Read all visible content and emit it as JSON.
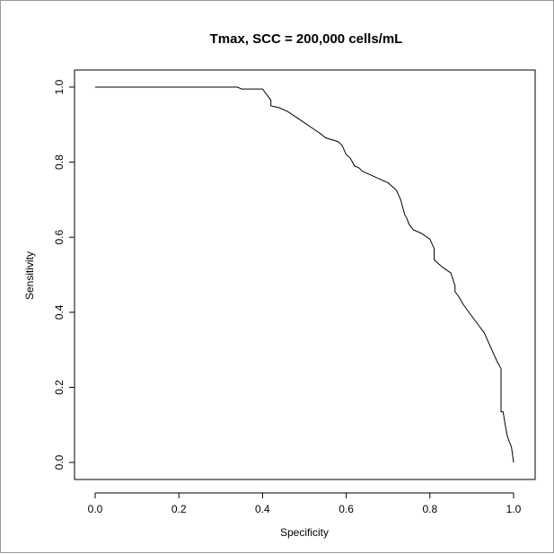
{
  "chart_data": {
    "type": "line",
    "title": "Tmax, SCC = 200,000 cells/mL",
    "xlabel": "Specificity",
    "ylabel": "Sensitivity",
    "xlim": [
      0.0,
      1.0
    ],
    "ylim": [
      0.0,
      1.0
    ],
    "x_ticks": [
      "0.0",
      "0.2",
      "0.4",
      "0.6",
      "0.8",
      "1.0"
    ],
    "y_ticks": [
      "0.0",
      "0.2",
      "0.4",
      "0.6",
      "0.8",
      "1.0"
    ],
    "grid": false,
    "series": [
      {
        "x": [
          0.0,
          0.34,
          0.35,
          0.4,
          0.41,
          0.42,
          0.42,
          0.44,
          0.46,
          0.48,
          0.5,
          0.52,
          0.54,
          0.55,
          0.58,
          0.59,
          0.6,
          0.61,
          0.62,
          0.63,
          0.64,
          0.66,
          0.68,
          0.7,
          0.71,
          0.72,
          0.73,
          0.735,
          0.74,
          0.745,
          0.75,
          0.76,
          0.78,
          0.8,
          0.81,
          0.81,
          0.82,
          0.83,
          0.85,
          0.86,
          0.86,
          0.87,
          0.88,
          0.9,
          0.92,
          0.93,
          0.94,
          0.95,
          0.96,
          0.97,
          0.97,
          0.975,
          0.98,
          0.985,
          0.99,
          0.995,
          1.0
        ],
        "y": [
          1.0,
          1.0,
          0.995,
          0.995,
          0.98,
          0.965,
          0.95,
          0.945,
          0.935,
          0.92,
          0.905,
          0.89,
          0.875,
          0.865,
          0.855,
          0.845,
          0.82,
          0.81,
          0.79,
          0.785,
          0.775,
          0.765,
          0.755,
          0.745,
          0.735,
          0.725,
          0.7,
          0.68,
          0.66,
          0.65,
          0.635,
          0.62,
          0.61,
          0.595,
          0.57,
          0.54,
          0.53,
          0.52,
          0.505,
          0.47,
          0.455,
          0.44,
          0.42,
          0.39,
          0.36,
          0.345,
          0.32,
          0.295,
          0.27,
          0.25,
          0.135,
          0.135,
          0.1,
          0.07,
          0.055,
          0.04,
          0.0
        ]
      }
    ]
  }
}
